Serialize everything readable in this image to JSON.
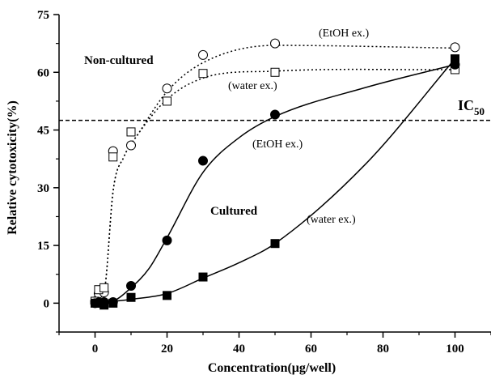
{
  "chart_data": {
    "type": "scatter",
    "xlabel": "Concentration(μg/well)",
    "ylabel": "Relative cytotoxicity(%)",
    "xlim": [
      -10,
      110
    ],
    "ylim": [
      -7.5,
      75
    ],
    "xticks": [
      0,
      20,
      40,
      60,
      80,
      100
    ],
    "yticks": [
      0,
      15,
      30,
      45,
      60,
      75
    ],
    "grid": false,
    "series": [
      {
        "name": "Non-cultured (EtOH ex.)",
        "marker": "open-circle",
        "line": "dotted",
        "color": "#000000",
        "x": [
          0,
          1,
          2.5,
          5,
          10,
          20,
          30,
          50,
          100
        ],
        "y": [
          0.5,
          2.5,
          2.8,
          39.5,
          41,
          55.8,
          64.5,
          67.5,
          66.5
        ]
      },
      {
        "name": "Non-cultured (water ex.)",
        "marker": "open-square",
        "line": "dotted",
        "color": "#000000",
        "x": [
          0,
          1,
          2.5,
          5,
          10,
          20,
          30,
          50,
          100
        ],
        "y": [
          0.5,
          3.5,
          4,
          38,
          44.5,
          52.5,
          59.7,
          60,
          60.7
        ]
      },
      {
        "name": "Cultured (EtOH ex.)",
        "marker": "filled-circle",
        "line": "solid",
        "color": "#000000",
        "x": [
          0,
          1,
          2.5,
          5,
          10,
          20,
          30,
          50,
          100
        ],
        "y": [
          0,
          0.2,
          0.3,
          0.3,
          4.5,
          16.3,
          37,
          49,
          62
        ]
      },
      {
        "name": "Cultured (water ex.)",
        "marker": "filled-square",
        "line": "solid",
        "color": "#000000",
        "x": [
          0,
          1,
          2.5,
          5,
          10,
          20,
          30,
          50,
          100
        ],
        "y": [
          0,
          0,
          -0.5,
          0,
          1.5,
          2,
          6.8,
          15.5,
          63.5
        ]
      }
    ],
    "reference_line": {
      "y": 47.5,
      "style": "dashed"
    },
    "annotations": {
      "ic_main": "IC",
      "ic_sub": "50",
      "non_cultured": "Non-cultured",
      "cultured": "Cultured",
      "etoh_top": "(EtOH ex.)",
      "water_top": "(water ex.)",
      "etoh_mid": "(EtOH ex.)",
      "water_mid": "(water ex.)"
    }
  }
}
